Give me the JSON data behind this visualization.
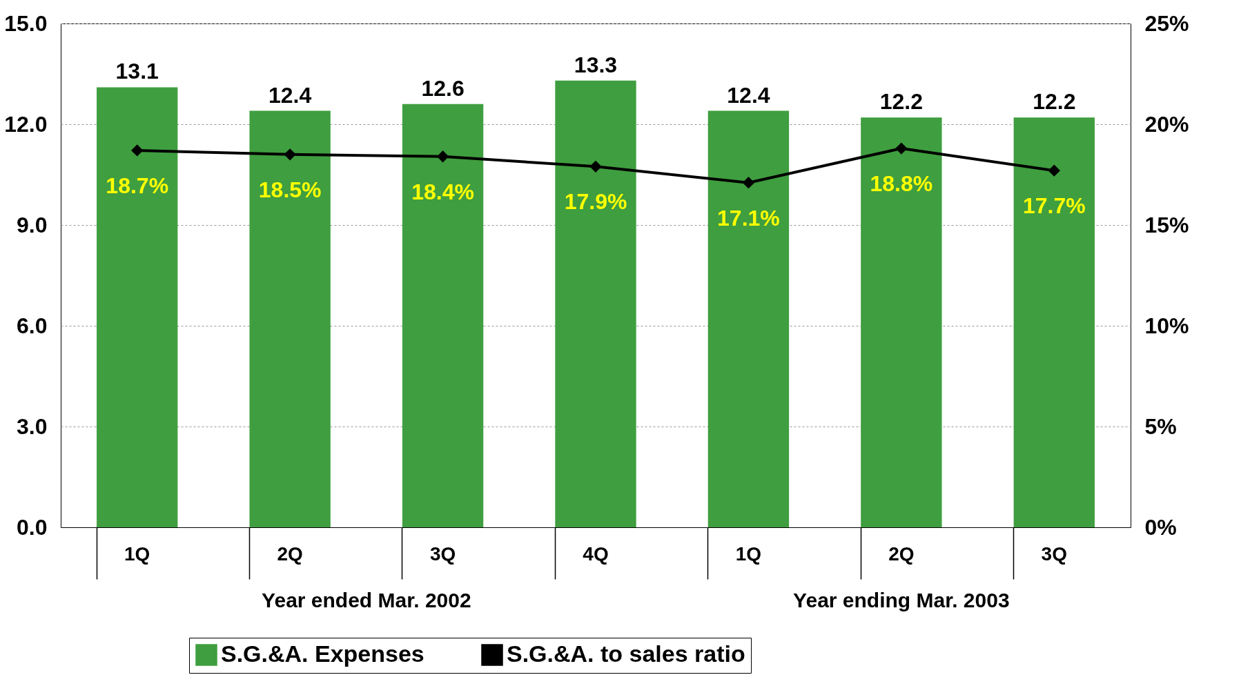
{
  "chart_data": {
    "type": "bar",
    "categories": [
      "1Q",
      "2Q",
      "3Q",
      "4Q",
      "1Q",
      "2Q",
      "3Q"
    ],
    "series": [
      {
        "name": "S.G.&A. Expenses",
        "color": "#3f9e3f",
        "values": [
          13.1,
          12.4,
          12.6,
          13.3,
          12.4,
          12.2,
          12.2
        ],
        "value_labels": [
          "13.1",
          "12.4",
          "12.6",
          "13.3",
          "12.4",
          "12.2",
          "12.2"
        ]
      },
      {
        "name": "S.G.&A. to sales ratio",
        "type": "line",
        "axis": "y2",
        "color": "#000000",
        "marker": "diamond",
        "values": [
          18.7,
          18.5,
          18.4,
          17.9,
          17.1,
          18.8,
          17.7
        ],
        "value_labels": [
          "18.7%",
          "18.5%",
          "18.4%",
          "17.9%",
          "17.1%",
          "18.8%",
          "17.7%"
        ]
      }
    ],
    "ylim": [
      0,
      15
    ],
    "yticks": [
      {
        "value": 0,
        "label": "0.0"
      },
      {
        "value": 3,
        "label": "3.0"
      },
      {
        "value": 6,
        "label": "6.0"
      },
      {
        "value": 9,
        "label": "9.0"
      },
      {
        "value": 12,
        "label": "12.0"
      },
      {
        "value": 15,
        "label": "15.0"
      }
    ],
    "y2lim": [
      0,
      25
    ],
    "y2ticks": [
      {
        "value": 0,
        "label": "0%"
      },
      {
        "value": 5,
        "label": "5%"
      },
      {
        "value": 10,
        "label": "10%"
      },
      {
        "value": 15,
        "label": "15%"
      },
      {
        "value": 20,
        "label": "20%"
      },
      {
        "value": 25,
        "label": "25%"
      }
    ],
    "annotations": [
      "Year ended Mar. 2002",
      "Year ending Mar. 2003"
    ],
    "grid": "y",
    "legend": "bottom"
  }
}
